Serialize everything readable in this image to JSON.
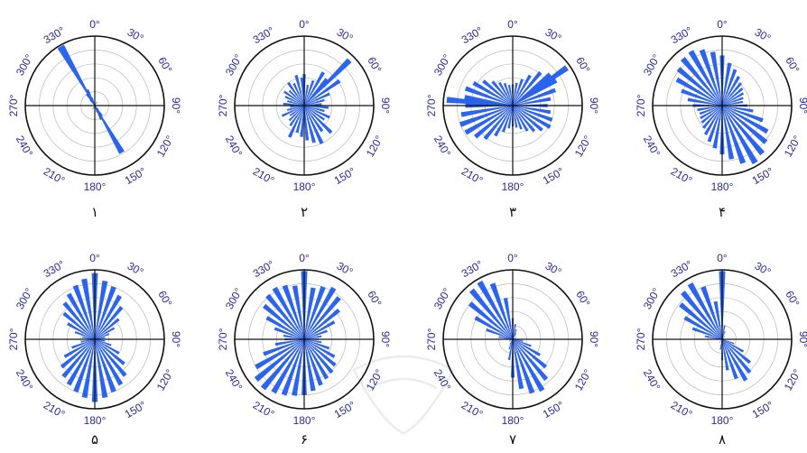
{
  "colors": {
    "petal": "#2a64f0",
    "tick_text": "#2a2a9a",
    "frame": "#111111",
    "grid": "#b8b8b8",
    "watermark": "#ececec"
  },
  "chart_data": [
    {
      "type": "polar_rose",
      "panel_label": "۱",
      "ticks": [
        "0°",
        "30°",
        "60°",
        "90°",
        "120°",
        "150°",
        "180°",
        "210°",
        "240°",
        "270°",
        "300°",
        "330°"
      ],
      "bin_width_deg": 6,
      "bins": [
        {
          "angle": 330,
          "r": 0.98
        },
        {
          "angle": 336,
          "r": 0.25
        },
        {
          "angle": 324,
          "r": 0.2
        },
        {
          "angle": 342,
          "r": 0.12
        },
        {
          "angle": 318,
          "r": 0.1
        },
        {
          "angle": 150,
          "r": 0.78
        },
        {
          "angle": 156,
          "r": 0.22
        },
        {
          "angle": 144,
          "r": 0.18
        },
        {
          "angle": 162,
          "r": 0.1
        },
        {
          "angle": 138,
          "r": 0.08
        },
        {
          "angle": 30,
          "r": 0.06
        },
        {
          "angle": 210,
          "r": 0.06
        },
        {
          "angle": 90,
          "r": 0.05
        },
        {
          "angle": 270,
          "r": 0.05
        }
      ]
    },
    {
      "type": "polar_rose",
      "panel_label": "۲",
      "ticks": [
        "0°",
        "30°",
        "60°",
        "90°",
        "120°",
        "150°",
        "180°",
        "210°",
        "240°",
        "270°",
        "300°",
        "330°"
      ],
      "bin_width_deg": 5,
      "bins": [
        {
          "angle": 0,
          "r": 0.45
        },
        {
          "angle": 10,
          "r": 0.3
        },
        {
          "angle": 20,
          "r": 0.38
        },
        {
          "angle": 30,
          "r": 0.55
        },
        {
          "angle": 40,
          "r": 0.5
        },
        {
          "angle": 45,
          "r": 0.92
        },
        {
          "angle": 55,
          "r": 0.62
        },
        {
          "angle": 65,
          "r": 0.4
        },
        {
          "angle": 75,
          "r": 0.3
        },
        {
          "angle": 85,
          "r": 0.25
        },
        {
          "angle": 95,
          "r": 0.35
        },
        {
          "angle": 105,
          "r": 0.3
        },
        {
          "angle": 115,
          "r": 0.4
        },
        {
          "angle": 125,
          "r": 0.35
        },
        {
          "angle": 135,
          "r": 0.55
        },
        {
          "angle": 145,
          "r": 0.45
        },
        {
          "angle": 155,
          "r": 0.6
        },
        {
          "angle": 165,
          "r": 0.55
        },
        {
          "angle": 175,
          "r": 0.5
        },
        {
          "angle": 185,
          "r": 0.45
        },
        {
          "angle": 195,
          "r": 0.4
        },
        {
          "angle": 205,
          "r": 0.5
        },
        {
          "angle": 215,
          "r": 0.35
        },
        {
          "angle": 225,
          "r": 0.3
        },
        {
          "angle": 235,
          "r": 0.25
        },
        {
          "angle": 245,
          "r": 0.35
        },
        {
          "angle": 255,
          "r": 0.25
        },
        {
          "angle": 265,
          "r": 0.2
        },
        {
          "angle": 275,
          "r": 0.3
        },
        {
          "angle": 285,
          "r": 0.25
        },
        {
          "angle": 295,
          "r": 0.3
        },
        {
          "angle": 305,
          "r": 0.35
        },
        {
          "angle": 315,
          "r": 0.3
        },
        {
          "angle": 325,
          "r": 0.4
        },
        {
          "angle": 335,
          "r": 0.35
        },
        {
          "angle": 345,
          "r": 0.45
        },
        {
          "angle": 355,
          "r": 0.4
        }
      ]
    },
    {
      "type": "polar_rose",
      "panel_label": "۳",
      "ticks": [
        "0°",
        "30°",
        "60°",
        "90°",
        "120°",
        "150°",
        "180°",
        "210°",
        "240°",
        "270°",
        "300°",
        "330°"
      ],
      "bin_width_deg": 5,
      "bins": [
        {
          "angle": 0,
          "r": 0.3
        },
        {
          "angle": 10,
          "r": 0.33
        },
        {
          "angle": 20,
          "r": 0.4
        },
        {
          "angle": 30,
          "r": 0.5
        },
        {
          "angle": 40,
          "r": 0.62
        },
        {
          "angle": 50,
          "r": 0.7
        },
        {
          "angle": 55,
          "r": 0.95
        },
        {
          "angle": 60,
          "r": 0.72
        },
        {
          "angle": 70,
          "r": 0.65
        },
        {
          "angle": 80,
          "r": 0.55
        },
        {
          "angle": 90,
          "r": 0.5
        },
        {
          "angle": 100,
          "r": 0.55
        },
        {
          "angle": 110,
          "r": 0.6
        },
        {
          "angle": 120,
          "r": 0.62
        },
        {
          "angle": 130,
          "r": 0.55
        },
        {
          "angle": 140,
          "r": 0.48
        },
        {
          "angle": 150,
          "r": 0.42
        },
        {
          "angle": 160,
          "r": 0.36
        },
        {
          "angle": 170,
          "r": 0.32
        },
        {
          "angle": 180,
          "r": 0.3
        },
        {
          "angle": 190,
          "r": 0.33
        },
        {
          "angle": 200,
          "r": 0.4
        },
        {
          "angle": 210,
          "r": 0.5
        },
        {
          "angle": 220,
          "r": 0.62
        },
        {
          "angle": 230,
          "r": 0.7
        },
        {
          "angle": 240,
          "r": 0.78
        },
        {
          "angle": 250,
          "r": 0.8
        },
        {
          "angle": 260,
          "r": 0.75
        },
        {
          "angle": 270,
          "r": 0.68
        },
        {
          "angle": 275,
          "r": 0.95
        },
        {
          "angle": 280,
          "r": 0.7
        },
        {
          "angle": 290,
          "r": 0.72
        },
        {
          "angle": 300,
          "r": 0.65
        },
        {
          "angle": 310,
          "r": 0.55
        },
        {
          "angle": 320,
          "r": 0.45
        },
        {
          "angle": 330,
          "r": 0.38
        },
        {
          "angle": 340,
          "r": 0.34
        },
        {
          "angle": 350,
          "r": 0.3
        }
      ]
    },
    {
      "type": "polar_rose",
      "panel_label": "۴",
      "ticks": [
        "0°",
        "30°",
        "60°",
        "90°",
        "120°",
        "150°",
        "180°",
        "210°",
        "240°",
        "270°",
        "300°",
        "330°"
      ],
      "bin_width_deg": 5,
      "bins": [
        {
          "angle": 0,
          "r": 0.72
        },
        {
          "angle": 10,
          "r": 0.62
        },
        {
          "angle": 20,
          "r": 0.55
        },
        {
          "angle": 30,
          "r": 0.48
        },
        {
          "angle": 40,
          "r": 0.42
        },
        {
          "angle": 50,
          "r": 0.38
        },
        {
          "angle": 60,
          "r": 0.35
        },
        {
          "angle": 70,
          "r": 0.32
        },
        {
          "angle": 80,
          "r": 0.3
        },
        {
          "angle": 90,
          "r": 0.36
        },
        {
          "angle": 100,
          "r": 0.45
        },
        {
          "angle": 110,
          "r": 0.62
        },
        {
          "angle": 120,
          "r": 0.75
        },
        {
          "angle": 130,
          "r": 0.82
        },
        {
          "angle": 140,
          "r": 0.9
        },
        {
          "angle": 150,
          "r": 0.95
        },
        {
          "angle": 160,
          "r": 0.88
        },
        {
          "angle": 170,
          "r": 0.78
        },
        {
          "angle": 180,
          "r": 0.7
        },
        {
          "angle": 190,
          "r": 0.62
        },
        {
          "angle": 200,
          "r": 0.55
        },
        {
          "angle": 210,
          "r": 0.48
        },
        {
          "angle": 220,
          "r": 0.42
        },
        {
          "angle": 230,
          "r": 0.38
        },
        {
          "angle": 240,
          "r": 0.36
        },
        {
          "angle": 250,
          "r": 0.34
        },
        {
          "angle": 260,
          "r": 0.36
        },
        {
          "angle": 270,
          "r": 0.42
        },
        {
          "angle": 280,
          "r": 0.5
        },
        {
          "angle": 290,
          "r": 0.62
        },
        {
          "angle": 300,
          "r": 0.75
        },
        {
          "angle": 310,
          "r": 0.82
        },
        {
          "angle": 320,
          "r": 0.88
        },
        {
          "angle": 330,
          "r": 0.9
        },
        {
          "angle": 340,
          "r": 0.85
        },
        {
          "angle": 350,
          "r": 0.78
        }
      ]
    },
    {
      "type": "polar_rose",
      "panel_label": "۵",
      "ticks": [
        "0°",
        "30°",
        "60°",
        "90°",
        "120°",
        "150°",
        "180°",
        "210°",
        "240°",
        "270°",
        "300°",
        "330°"
      ],
      "bin_width_deg": 5,
      "bins": [
        {
          "angle": 0,
          "r": 0.95
        },
        {
          "angle": 10,
          "r": 0.85
        },
        {
          "angle": 20,
          "r": 0.8
        },
        {
          "angle": 30,
          "r": 0.72
        },
        {
          "angle": 40,
          "r": 0.6
        },
        {
          "angle": 50,
          "r": 0.45
        },
        {
          "angle": 60,
          "r": 0.32
        },
        {
          "angle": 70,
          "r": 0.22
        },
        {
          "angle": 80,
          "r": 0.15
        },
        {
          "angle": 90,
          "r": 0.12
        },
        {
          "angle": 100,
          "r": 0.15
        },
        {
          "angle": 110,
          "r": 0.25
        },
        {
          "angle": 120,
          "r": 0.4
        },
        {
          "angle": 130,
          "r": 0.55
        },
        {
          "angle": 140,
          "r": 0.68
        },
        {
          "angle": 150,
          "r": 0.75
        },
        {
          "angle": 160,
          "r": 0.8
        },
        {
          "angle": 170,
          "r": 0.85
        },
        {
          "angle": 180,
          "r": 0.9
        },
        {
          "angle": 190,
          "r": 0.85
        },
        {
          "angle": 200,
          "r": 0.8
        },
        {
          "angle": 210,
          "r": 0.75
        },
        {
          "angle": 220,
          "r": 0.7
        },
        {
          "angle": 230,
          "r": 0.62
        },
        {
          "angle": 240,
          "r": 0.5
        },
        {
          "angle": 250,
          "r": 0.35
        },
        {
          "angle": 260,
          "r": 0.2
        },
        {
          "angle": 270,
          "r": 0.12
        },
        {
          "angle": 280,
          "r": 0.18
        },
        {
          "angle": 290,
          "r": 0.3
        },
        {
          "angle": 300,
          "r": 0.45
        },
        {
          "angle": 310,
          "r": 0.58
        },
        {
          "angle": 320,
          "r": 0.68
        },
        {
          "angle": 330,
          "r": 0.75
        },
        {
          "angle": 340,
          "r": 0.82
        },
        {
          "angle": 350,
          "r": 0.88
        }
      ]
    },
    {
      "type": "polar_rose",
      "panel_label": "۶",
      "ticks": [
        "0°",
        "30°",
        "60°",
        "90°",
        "120°",
        "150°",
        "180°",
        "210°",
        "240°",
        "270°",
        "300°",
        "330°"
      ],
      "bin_width_deg": 5,
      "bins": [
        {
          "angle": 0,
          "r": 0.98
        },
        {
          "angle": 10,
          "r": 0.75
        },
        {
          "angle": 20,
          "r": 0.8
        },
        {
          "angle": 30,
          "r": 0.85
        },
        {
          "angle": 40,
          "r": 0.78
        },
        {
          "angle": 50,
          "r": 0.65
        },
        {
          "angle": 60,
          "r": 0.5
        },
        {
          "angle": 70,
          "r": 0.35
        },
        {
          "angle": 80,
          "r": 0.25
        },
        {
          "angle": 90,
          "r": 0.2
        },
        {
          "angle": 100,
          "r": 0.25
        },
        {
          "angle": 110,
          "r": 0.38
        },
        {
          "angle": 120,
          "r": 0.5
        },
        {
          "angle": 130,
          "r": 0.58
        },
        {
          "angle": 140,
          "r": 0.62
        },
        {
          "angle": 150,
          "r": 0.65
        },
        {
          "angle": 160,
          "r": 0.7
        },
        {
          "angle": 170,
          "r": 0.75
        },
        {
          "angle": 180,
          "r": 0.8
        },
        {
          "angle": 190,
          "r": 0.82
        },
        {
          "angle": 200,
          "r": 0.85
        },
        {
          "angle": 210,
          "r": 0.88
        },
        {
          "angle": 220,
          "r": 0.92
        },
        {
          "angle": 230,
          "r": 0.9
        },
        {
          "angle": 240,
          "r": 0.8
        },
        {
          "angle": 250,
          "r": 0.62
        },
        {
          "angle": 260,
          "r": 0.42
        },
        {
          "angle": 270,
          "r": 0.28
        },
        {
          "angle": 280,
          "r": 0.3
        },
        {
          "angle": 290,
          "r": 0.45
        },
        {
          "angle": 300,
          "r": 0.62
        },
        {
          "angle": 310,
          "r": 0.75
        },
        {
          "angle": 320,
          "r": 0.82
        },
        {
          "angle": 330,
          "r": 0.85
        },
        {
          "angle": 340,
          "r": 0.82
        },
        {
          "angle": 350,
          "r": 0.78
        }
      ]
    },
    {
      "type": "polar_rose",
      "panel_label": "۷",
      "ticks": [
        "0°",
        "30°",
        "60°",
        "90°",
        "120°",
        "150°",
        "180°",
        "210°",
        "240°",
        "270°",
        "300°",
        "330°"
      ],
      "bin_width_deg": 5,
      "bins": [
        {
          "angle": 0,
          "r": 0.3
        },
        {
          "angle": 10,
          "r": 0.22
        },
        {
          "angle": 20,
          "r": 0.15
        },
        {
          "angle": 30,
          "r": 0.1
        },
        {
          "angle": 60,
          "r": 0.06
        },
        {
          "angle": 90,
          "r": 0.08
        },
        {
          "angle": 100,
          "r": 0.15
        },
        {
          "angle": 110,
          "r": 0.28
        },
        {
          "angle": 120,
          "r": 0.45
        },
        {
          "angle": 130,
          "r": 0.62
        },
        {
          "angle": 140,
          "r": 0.75
        },
        {
          "angle": 150,
          "r": 0.85
        },
        {
          "angle": 160,
          "r": 0.82
        },
        {
          "angle": 170,
          "r": 0.72
        },
        {
          "angle": 180,
          "r": 0.55
        },
        {
          "angle": 190,
          "r": 0.3
        },
        {
          "angle": 200,
          "r": 0.15
        },
        {
          "angle": 210,
          "r": 0.08
        },
        {
          "angle": 240,
          "r": 0.06
        },
        {
          "angle": 270,
          "r": 0.08
        },
        {
          "angle": 280,
          "r": 0.2
        },
        {
          "angle": 290,
          "r": 0.4
        },
        {
          "angle": 300,
          "r": 0.62
        },
        {
          "angle": 310,
          "r": 0.8
        },
        {
          "angle": 320,
          "r": 0.92
        },
        {
          "angle": 330,
          "r": 0.95
        },
        {
          "angle": 340,
          "r": 0.85
        },
        {
          "angle": 350,
          "r": 0.6
        }
      ]
    },
    {
      "type": "polar_rose",
      "panel_label": "۸",
      "ticks": [
        "0°",
        "30°",
        "60°",
        "90°",
        "120°",
        "150°",
        "180°",
        "210°",
        "240°",
        "270°",
        "300°",
        "330°"
      ],
      "bin_width_deg": 5,
      "bins": [
        {
          "angle": 0,
          "r": 0.98
        },
        {
          "angle": 10,
          "r": 0.2
        },
        {
          "angle": 20,
          "r": 0.12
        },
        {
          "angle": 40,
          "r": 0.06
        },
        {
          "angle": 90,
          "r": 0.06
        },
        {
          "angle": 110,
          "r": 0.18
        },
        {
          "angle": 120,
          "r": 0.35
        },
        {
          "angle": 130,
          "r": 0.52
        },
        {
          "angle": 140,
          "r": 0.62
        },
        {
          "angle": 150,
          "r": 0.68
        },
        {
          "angle": 160,
          "r": 0.6
        },
        {
          "angle": 170,
          "r": 0.45
        },
        {
          "angle": 180,
          "r": 0.3
        },
        {
          "angle": 190,
          "r": 0.15
        },
        {
          "angle": 220,
          "r": 0.06
        },
        {
          "angle": 270,
          "r": 0.1
        },
        {
          "angle": 280,
          "r": 0.25
        },
        {
          "angle": 290,
          "r": 0.45
        },
        {
          "angle": 300,
          "r": 0.62
        },
        {
          "angle": 310,
          "r": 0.78
        },
        {
          "angle": 320,
          "r": 0.88
        },
        {
          "angle": 330,
          "r": 0.92
        },
        {
          "angle": 340,
          "r": 0.8
        },
        {
          "angle": 350,
          "r": 0.55
        }
      ]
    }
  ]
}
